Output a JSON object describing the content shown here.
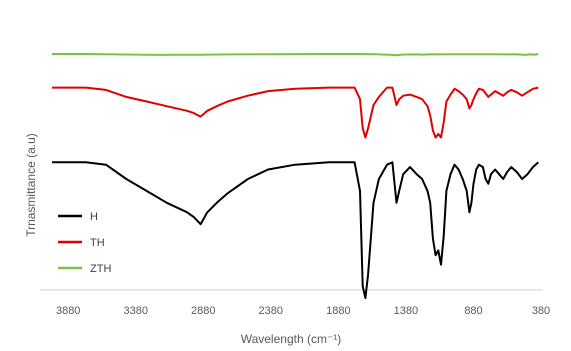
{
  "chart_data": {
    "type": "line",
    "xlabel": "Wavelength (cm⁻¹)",
    "ylabel": "Trnasmittance (a.u)",
    "x_ticks": [
      3880,
      3380,
      2880,
      2380,
      1880,
      1380,
      880,
      380
    ],
    "xlim": [
      4000,
      380
    ],
    "x_reversed": true,
    "grid": false,
    "legend_position": "bottom-left",
    "series": [
      {
        "name": "H",
        "color": "#000000",
        "points": [
          [
            4000,
            0.43
          ],
          [
            3750,
            0.43
          ],
          [
            3600,
            0.44
          ],
          [
            3450,
            0.5
          ],
          [
            3300,
            0.55
          ],
          [
            3150,
            0.6
          ],
          [
            3000,
            0.64
          ],
          [
            2950,
            0.66
          ],
          [
            2900,
            0.69
          ],
          [
            2850,
            0.64
          ],
          [
            2780,
            0.6
          ],
          [
            2700,
            0.56
          ],
          [
            2550,
            0.5
          ],
          [
            2400,
            0.46
          ],
          [
            2200,
            0.44
          ],
          [
            1950,
            0.43
          ],
          [
            1760,
            0.43
          ],
          [
            1720,
            0.55
          ],
          [
            1700,
            0.95
          ],
          [
            1680,
            1.0
          ],
          [
            1660,
            0.9
          ],
          [
            1620,
            0.6
          ],
          [
            1580,
            0.5
          ],
          [
            1520,
            0.44
          ],
          [
            1480,
            0.43
          ],
          [
            1450,
            0.6
          ],
          [
            1430,
            0.55
          ],
          [
            1400,
            0.48
          ],
          [
            1350,
            0.45
          ],
          [
            1300,
            0.48
          ],
          [
            1260,
            0.5
          ],
          [
            1220,
            0.55
          ],
          [
            1200,
            0.6
          ],
          [
            1180,
            0.75
          ],
          [
            1160,
            0.82
          ],
          [
            1140,
            0.8
          ],
          [
            1120,
            0.86
          ],
          [
            1100,
            0.74
          ],
          [
            1080,
            0.55
          ],
          [
            1050,
            0.48
          ],
          [
            1020,
            0.44
          ],
          [
            990,
            0.46
          ],
          [
            960,
            0.5
          ],
          [
            930,
            0.55
          ],
          [
            910,
            0.64
          ],
          [
            895,
            0.6
          ],
          [
            880,
            0.52
          ],
          [
            860,
            0.46
          ],
          [
            840,
            0.44
          ],
          [
            810,
            0.45
          ],
          [
            790,
            0.5
          ],
          [
            770,
            0.52
          ],
          [
            750,
            0.48
          ],
          [
            720,
            0.46
          ],
          [
            690,
            0.48
          ],
          [
            660,
            0.5
          ],
          [
            630,
            0.47
          ],
          [
            600,
            0.45
          ],
          [
            560,
            0.47
          ],
          [
            520,
            0.5
          ],
          [
            480,
            0.48
          ],
          [
            440,
            0.45
          ],
          [
            400,
            0.43
          ]
        ]
      },
      {
        "name": "TH",
        "color": "#e00000",
        "points": [
          [
            4000,
            0.1
          ],
          [
            3750,
            0.1
          ],
          [
            3600,
            0.12
          ],
          [
            3450,
            0.18
          ],
          [
            3300,
            0.22
          ],
          [
            3150,
            0.26
          ],
          [
            3000,
            0.3
          ],
          [
            2950,
            0.32
          ],
          [
            2900,
            0.35
          ],
          [
            2850,
            0.3
          ],
          [
            2780,
            0.26
          ],
          [
            2700,
            0.22
          ],
          [
            2550,
            0.17
          ],
          [
            2400,
            0.13
          ],
          [
            2200,
            0.11
          ],
          [
            1950,
            0.1
          ],
          [
            1760,
            0.1
          ],
          [
            1720,
            0.2
          ],
          [
            1700,
            0.45
          ],
          [
            1680,
            0.53
          ],
          [
            1660,
            0.45
          ],
          [
            1620,
            0.25
          ],
          [
            1580,
            0.18
          ],
          [
            1520,
            0.1
          ],
          [
            1480,
            0.1
          ],
          [
            1450,
            0.25
          ],
          [
            1430,
            0.2
          ],
          [
            1400,
            0.17
          ],
          [
            1350,
            0.16
          ],
          [
            1300,
            0.18
          ],
          [
            1260,
            0.2
          ],
          [
            1220,
            0.26
          ],
          [
            1200,
            0.34
          ],
          [
            1180,
            0.47
          ],
          [
            1160,
            0.53
          ],
          [
            1140,
            0.5
          ],
          [
            1120,
            0.53
          ],
          [
            1100,
            0.4
          ],
          [
            1080,
            0.22
          ],
          [
            1050,
            0.16
          ],
          [
            1020,
            0.11
          ],
          [
            990,
            0.13
          ],
          [
            960,
            0.16
          ],
          [
            930,
            0.2
          ],
          [
            910,
            0.28
          ],
          [
            895,
            0.25
          ],
          [
            880,
            0.2
          ],
          [
            860,
            0.15
          ],
          [
            840,
            0.11
          ],
          [
            810,
            0.12
          ],
          [
            790,
            0.15
          ],
          [
            770,
            0.18
          ],
          [
            750,
            0.16
          ],
          [
            720,
            0.13
          ],
          [
            690,
            0.15
          ],
          [
            660,
            0.17
          ],
          [
            630,
            0.14
          ],
          [
            600,
            0.12
          ],
          [
            560,
            0.14
          ],
          [
            520,
            0.17
          ],
          [
            480,
            0.14
          ],
          [
            440,
            0.11
          ],
          [
            400,
            0.1
          ]
        ]
      },
      {
        "name": "ZTH",
        "color": "#7bc142",
        "points": [
          [
            4000,
            0.0
          ],
          [
            3750,
            0.0
          ],
          [
            3600,
            0.01
          ],
          [
            3450,
            0.025
          ],
          [
            3300,
            0.04
          ],
          [
            3200,
            0.045
          ],
          [
            3100,
            0.04
          ],
          [
            2900,
            0.035
          ],
          [
            2700,
            0.02
          ],
          [
            2400,
            0.01
          ],
          [
            2000,
            0.0
          ],
          [
            1700,
            0.0
          ],
          [
            1600,
            0.015
          ],
          [
            1500,
            0.035
          ],
          [
            1450,
            0.06
          ],
          [
            1420,
            0.04
          ],
          [
            1380,
            0.025
          ],
          [
            1300,
            0.02
          ],
          [
            1250,
            0.03
          ],
          [
            1200,
            0.015
          ],
          [
            1150,
            0.02
          ],
          [
            1050,
            0.01
          ],
          [
            950,
            0.015
          ],
          [
            880,
            0.01
          ],
          [
            800,
            0.015
          ],
          [
            720,
            0.01
          ],
          [
            640,
            0.02
          ],
          [
            560,
            0.01
          ],
          [
            500,
            0.045
          ],
          [
            460,
            0.02
          ],
          [
            420,
            0.03
          ],
          [
            400,
            0.0
          ]
        ]
      }
    ]
  }
}
